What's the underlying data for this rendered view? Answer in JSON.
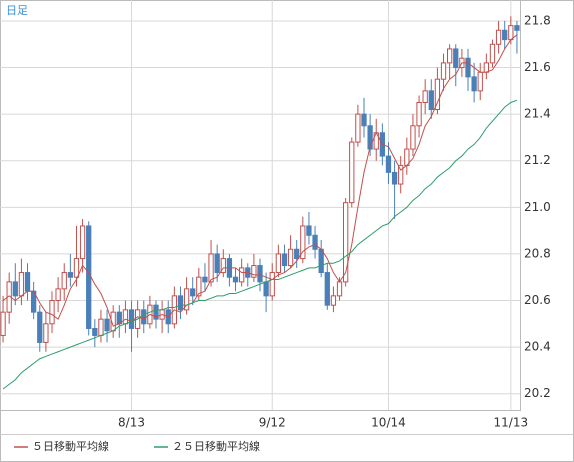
{
  "chart_data": {
    "type": "candlestick",
    "title": "日足",
    "categories": [
      null,
      null,
      null,
      null,
      null,
      null,
      null,
      null,
      null,
      null,
      null,
      null,
      null,
      null,
      null,
      null,
      null,
      null,
      null,
      null,
      null,
      "8/13",
      null,
      null,
      null,
      null,
      null,
      null,
      null,
      null,
      null,
      null,
      null,
      null,
      null,
      null,
      null,
      null,
      null,
      null,
      null,
      null,
      null,
      null,
      "9/12",
      null,
      null,
      null,
      null,
      null,
      null,
      null,
      null,
      null,
      null,
      null,
      null,
      null,
      null,
      null,
      null,
      null,
      null,
      "10/14",
      null,
      null,
      null,
      null,
      null,
      null,
      null,
      null,
      null,
      null,
      null,
      null,
      null,
      null,
      null,
      null,
      null,
      null,
      null,
      "11/13",
      null
    ],
    "open": [
      20.45,
      20.55,
      20.68,
      20.62,
      20.72,
      20.64,
      20.55,
      20.42,
      20.5,
      20.6,
      20.65,
      20.72,
      20.7,
      20.78,
      20.92,
      20.48,
      20.45,
      20.52,
      20.47,
      20.55,
      20.5,
      20.56,
      20.48,
      20.56,
      20.5,
      20.58,
      20.52,
      20.56,
      20.5,
      20.62,
      20.56,
      20.65,
      20.62,
      20.7,
      20.68,
      20.8,
      20.72,
      20.78,
      20.7,
      20.68,
      20.74,
      20.7,
      20.75,
      20.68,
      20.62,
      20.72,
      20.8,
      20.75,
      20.82,
      20.78,
      20.92,
      20.88,
      20.82,
      20.72,
      20.58,
      20.62,
      20.68,
      21.02,
      21.28,
      21.4,
      21.35,
      21.25,
      21.32,
      21.22,
      21.15,
      21.1,
      21.18,
      21.25,
      21.35,
      21.45,
      21.5,
      21.42,
      21.55,
      21.62,
      21.68,
      21.6,
      21.64,
      21.56,
      21.5,
      21.58,
      21.62,
      21.7,
      21.76,
      21.72,
      21.78
    ],
    "high": [
      20.62,
      20.72,
      20.76,
      20.78,
      20.76,
      20.68,
      20.58,
      20.55,
      20.64,
      20.7,
      20.76,
      20.8,
      20.92,
      20.95,
      20.94,
      20.52,
      20.56,
      20.56,
      20.58,
      20.58,
      20.6,
      20.6,
      20.6,
      20.6,
      20.62,
      20.6,
      20.6,
      20.6,
      20.66,
      20.66,
      20.7,
      20.7,
      20.74,
      20.76,
      20.86,
      20.84,
      20.82,
      20.8,
      20.74,
      20.78,
      20.76,
      20.8,
      20.78,
      20.72,
      20.76,
      20.84,
      20.84,
      20.88,
      20.86,
      20.96,
      20.98,
      20.92,
      20.86,
      20.76,
      20.66,
      20.7,
      21.04,
      21.3,
      21.44,
      21.47,
      21.4,
      21.38,
      21.36,
      21.28,
      21.2,
      21.22,
      21.3,
      21.4,
      21.48,
      21.55,
      21.55,
      21.6,
      21.66,
      21.7,
      21.7,
      21.68,
      21.68,
      21.62,
      21.62,
      21.66,
      21.72,
      21.8,
      21.8,
      21.82,
      21.8
    ],
    "low": [
      20.42,
      20.5,
      20.58,
      20.58,
      20.6,
      20.52,
      20.38,
      20.38,
      20.46,
      20.55,
      20.6,
      20.66,
      20.66,
      20.72,
      20.45,
      20.4,
      20.42,
      20.42,
      20.44,
      20.44,
      20.46,
      20.38,
      20.44,
      20.46,
      20.48,
      20.48,
      20.46,
      20.46,
      20.48,
      20.52,
      20.54,
      20.58,
      20.6,
      20.64,
      20.66,
      20.68,
      20.7,
      20.66,
      20.64,
      20.66,
      20.66,
      20.68,
      20.64,
      20.55,
      20.6,
      20.7,
      20.72,
      20.74,
      20.74,
      20.76,
      20.84,
      20.78,
      20.7,
      20.56,
      20.55,
      20.6,
      20.66,
      21.0,
      21.26,
      21.3,
      21.22,
      21.2,
      21.18,
      21.1,
      20.95,
      21.06,
      21.14,
      21.22,
      21.3,
      21.4,
      21.38,
      21.4,
      21.5,
      21.55,
      21.52,
      21.56,
      21.5,
      21.45,
      21.46,
      21.55,
      21.6,
      21.66,
      21.68,
      21.7,
      21.66
    ],
    "close": [
      20.55,
      20.68,
      20.62,
      20.72,
      20.64,
      20.55,
      20.42,
      20.5,
      20.6,
      20.65,
      20.72,
      20.7,
      20.78,
      20.92,
      20.48,
      20.45,
      20.52,
      20.47,
      20.55,
      20.5,
      20.56,
      20.48,
      20.56,
      20.5,
      20.58,
      20.52,
      20.56,
      20.5,
      20.62,
      20.56,
      20.65,
      20.62,
      20.7,
      20.68,
      20.8,
      20.72,
      20.78,
      20.7,
      20.68,
      20.74,
      20.7,
      20.75,
      20.68,
      20.62,
      20.72,
      20.8,
      20.75,
      20.82,
      20.78,
      20.92,
      20.88,
      20.82,
      20.72,
      20.58,
      20.62,
      20.68,
      21.02,
      21.28,
      21.4,
      21.35,
      21.25,
      21.32,
      21.22,
      21.15,
      21.1,
      21.18,
      21.25,
      21.35,
      21.45,
      21.5,
      21.42,
      21.55,
      21.62,
      21.68,
      21.6,
      21.64,
      21.56,
      21.5,
      21.58,
      21.62,
      21.7,
      21.76,
      21.72,
      21.78,
      21.76
    ],
    "up_color": "#c0504d",
    "down_color": "#4a7fb8",
    "series": [
      {
        "name": "５日移動平均線",
        "color": "#c0504d",
        "values": [
          20.6,
          20.62,
          20.6,
          20.62,
          20.64,
          20.64,
          20.59,
          20.55,
          20.54,
          20.52,
          20.58,
          20.65,
          20.69,
          20.75,
          20.72,
          20.67,
          20.63,
          20.57,
          20.49,
          20.5,
          20.52,
          20.51,
          20.53,
          20.52,
          20.54,
          20.53,
          20.54,
          20.53,
          20.56,
          20.55,
          20.58,
          20.59,
          20.63,
          20.64,
          20.69,
          20.7,
          20.74,
          20.74,
          20.74,
          20.72,
          20.72,
          20.71,
          20.71,
          20.7,
          20.69,
          20.71,
          20.72,
          20.74,
          20.77,
          20.81,
          20.83,
          20.84,
          20.82,
          20.78,
          20.72,
          20.68,
          20.72,
          20.84,
          21.0,
          21.15,
          21.26,
          21.32,
          21.27,
          21.26,
          21.21,
          21.16,
          21.18,
          21.21,
          21.27,
          21.35,
          21.39,
          21.45,
          21.51,
          21.55,
          21.57,
          21.62,
          21.62,
          21.6,
          21.58,
          21.58,
          21.59,
          21.63,
          21.68,
          21.72,
          21.74
        ]
      },
      {
        "name": "２５日移動平均線",
        "color": "#2e9e6a",
        "values": [
          20.22,
          20.24,
          20.26,
          20.29,
          20.31,
          20.33,
          20.35,
          20.36,
          20.37,
          20.38,
          20.39,
          20.4,
          20.41,
          20.42,
          20.43,
          20.44,
          20.45,
          20.46,
          20.47,
          20.49,
          20.5,
          20.51,
          20.52,
          20.54,
          20.55,
          20.56,
          20.56,
          20.57,
          20.57,
          20.58,
          20.58,
          20.59,
          20.6,
          20.6,
          20.61,
          20.62,
          20.62,
          20.63,
          20.63,
          20.64,
          20.65,
          20.66,
          20.67,
          20.68,
          20.69,
          20.69,
          20.7,
          20.71,
          20.72,
          20.73,
          20.74,
          20.74,
          20.75,
          20.76,
          20.76,
          20.77,
          20.79,
          20.81,
          20.84,
          20.86,
          20.88,
          20.9,
          20.92,
          20.93,
          20.96,
          20.98,
          21.0,
          21.03,
          21.05,
          21.08,
          21.1,
          21.13,
          21.15,
          21.17,
          21.2,
          21.22,
          21.25,
          21.27,
          21.3,
          21.34,
          21.37,
          21.4,
          21.43,
          21.45,
          21.46
        ]
      }
    ],
    "ylim": [
      20.13,
      21.89
    ],
    "yticks": [
      20.2,
      20.4,
      20.6,
      20.8,
      {
        "value": 21,
        "label": "21.0"
      },
      21.2,
      21.4,
      21.6,
      21.8
    ],
    "grid": true
  }
}
